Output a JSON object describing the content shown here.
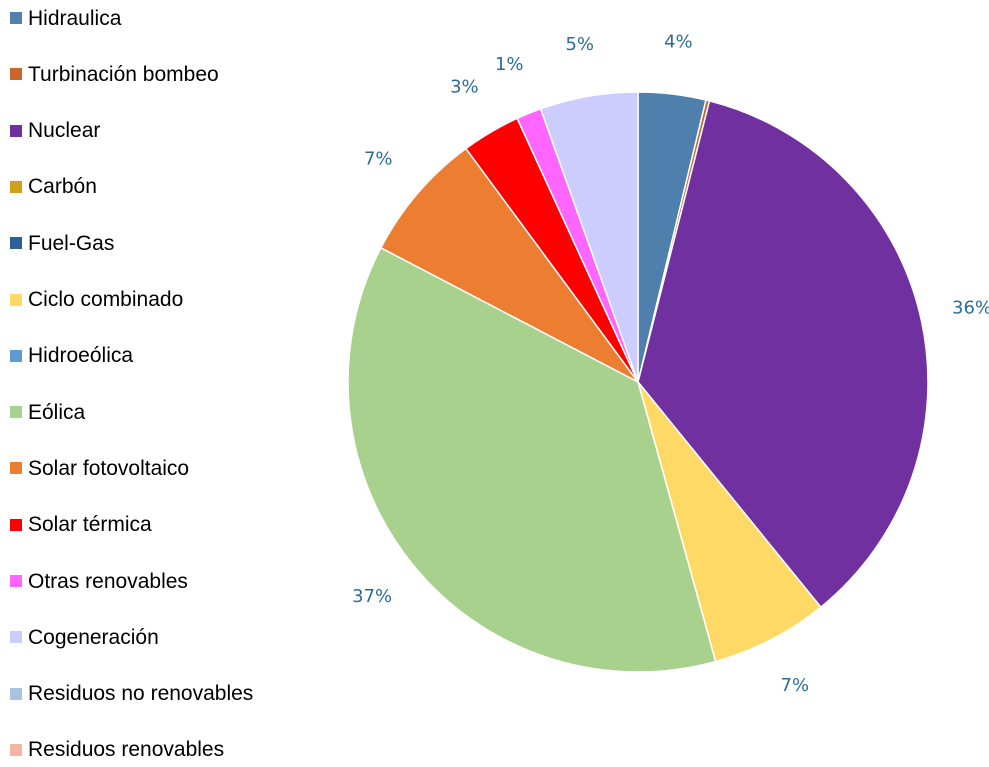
{
  "chart_data": {
    "type": "pie",
    "title": "",
    "legend_position": "left",
    "categories": [
      "Hidraulica",
      "Turbinación bombeo",
      "Nuclear",
      "Carbón",
      "Fuel-Gas",
      "Ciclo combinado",
      "Hidroeólica",
      "Eólica",
      "Solar fotovoltaico",
      "Solar térmica",
      "Otras renovables",
      "Cogeneración",
      "Residuos no renovables",
      "Residuos renovables"
    ],
    "values": [
      3.8,
      0.2,
      35.5,
      0,
      0,
      6.6,
      0,
      37.3,
      7.3,
      3.3,
      1.4,
      5.5,
      0,
      0
    ],
    "colors": [
      "#4e7fad",
      "#c7672d",
      "#7030a0",
      "#d4a017",
      "#2f5f9a",
      "#ffd966",
      "#5b9bd5",
      "#a9d18e",
      "#ed7d31",
      "#ff0000",
      "#ff66ff",
      "#ccccff",
      "#a9c4e0",
      "#f4b6a0"
    ],
    "data_labels": [
      "4%",
      "",
      "36%",
      "",
      "",
      "7%",
      "",
      "37%",
      "7%",
      "3%",
      "1%",
      "5%",
      "",
      ""
    ],
    "label_color": "#2b6d97"
  }
}
